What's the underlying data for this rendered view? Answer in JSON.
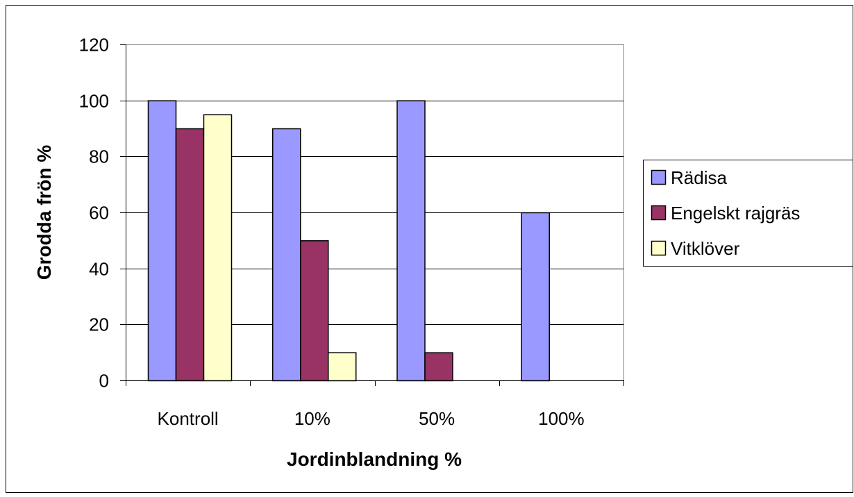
{
  "chart_data": {
    "type": "bar",
    "title": "",
    "xlabel": "Jordinblandning %",
    "ylabel": "Grodda frön %",
    "categories": [
      "Kontroll",
      "10%",
      "50%",
      "100%"
    ],
    "series": [
      {
        "name": "Rädisa",
        "values": [
          100,
          90,
          100,
          60
        ],
        "color": "#9999ff"
      },
      {
        "name": "Engelskt rajgräs",
        "values": [
          90,
          50,
          10,
          0
        ],
        "color": "#993366"
      },
      {
        "name": "Vitklöver",
        "values": [
          95,
          10,
          0,
          0
        ],
        "color": "#ffffcc"
      }
    ],
    "ylim": [
      0,
      120
    ],
    "yticks": [
      0,
      20,
      40,
      60,
      80,
      100,
      120
    ],
    "grid": true,
    "legend_position": "right"
  }
}
